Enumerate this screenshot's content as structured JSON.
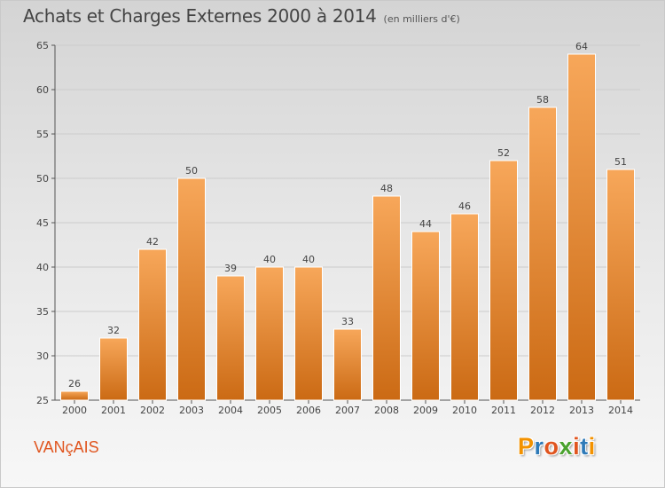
{
  "header": {
    "title": "Achats et Charges Externes 2000 à 2014",
    "subtitle": "(en milliers d'€)"
  },
  "footer": {
    "commune": "VANçAIS",
    "logo_text": "Proxiti",
    "logo_colors": [
      "#f39200",
      "#2e7ab8",
      "#e0551f",
      "#4aa22e",
      "#e0551f",
      "#2e7ab8",
      "#f39200"
    ]
  },
  "colors": {
    "bar_top": "#f7a75a",
    "bar_bottom": "#cb6a14",
    "grid": "#cccccc",
    "axis": "#555555",
    "text": "#444444"
  },
  "chart_data": {
    "type": "bar",
    "title": "Achats et Charges Externes 2000 à 2014",
    "subtitle": "(en milliers d'€)",
    "categories": [
      "2000",
      "2001",
      "2002",
      "2003",
      "2004",
      "2005",
      "2006",
      "2007",
      "2008",
      "2009",
      "2010",
      "2011",
      "2012",
      "2013",
      "2014"
    ],
    "values": [
      26,
      32,
      42,
      50,
      39,
      40,
      40,
      33,
      48,
      44,
      46,
      52,
      58,
      64,
      51
    ],
    "ylim": [
      25,
      65
    ],
    "yticks": [
      25,
      30,
      35,
      40,
      45,
      50,
      55,
      60,
      65
    ],
    "grid": true,
    "data_labels": true
  }
}
